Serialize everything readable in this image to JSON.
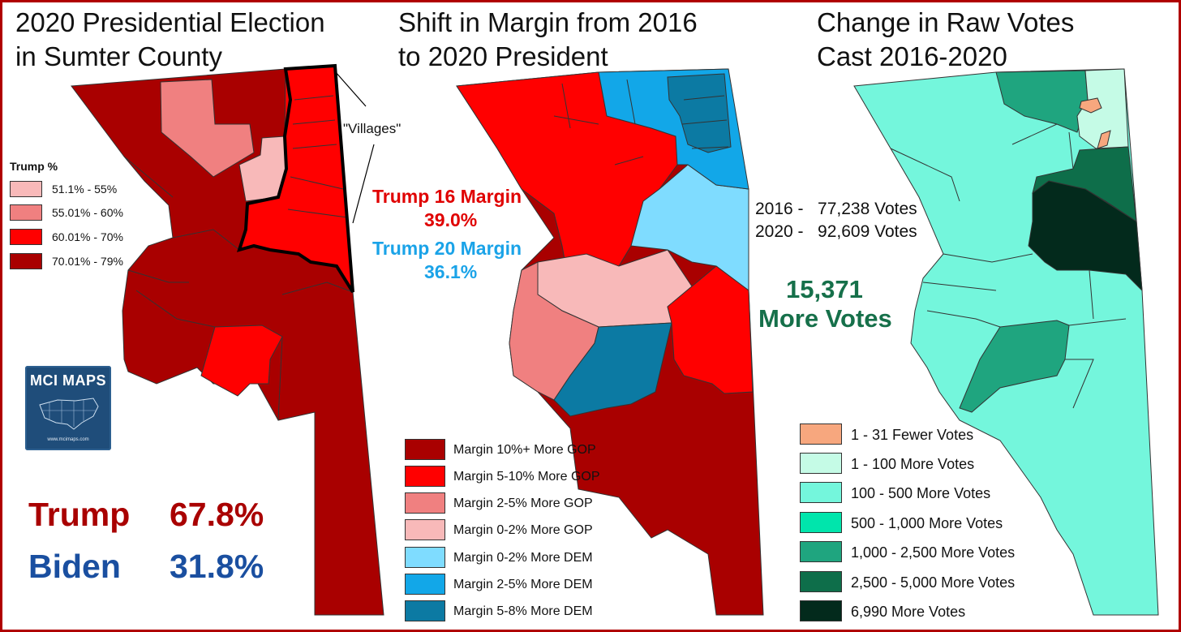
{
  "titles": {
    "map1": "2020 Presidential Election\nin Sumter County",
    "map2": "Shift in Margin from 2016\nto 2020 President",
    "map3": "Change in Raw Votes\nCast 2016-2020"
  },
  "annotations": {
    "villages": "\"Villages\""
  },
  "map1_legend": {
    "title": "Trump  %",
    "items": [
      {
        "label": "51.1% - 55%",
        "color": "#f8b9b9"
      },
      {
        "label": "55.01% - 60%",
        "color": "#f08080"
      },
      {
        "label": "60.01% - 70%",
        "color": "#ff0000"
      },
      {
        "label": "70.01% - 79%",
        "color": "#a90000"
      }
    ]
  },
  "results": {
    "trump_name": "Trump",
    "trump_pct": "67.8%",
    "biden_name": "Biden",
    "biden_pct": "31.8%",
    "trump_color": "#a90000",
    "biden_color": "#1a4fa0"
  },
  "margins": {
    "t16_label": "Trump 16 Margin",
    "t16_value": "39.0%",
    "t20_label": "Trump 20 Margin",
    "t20_value": "36.1%",
    "t16_color": "#e00000",
    "t20_color": "#1aa3e8"
  },
  "map2_legend": {
    "items": [
      {
        "label": "Margin 10%+ More GOP",
        "color": "#a90000"
      },
      {
        "label": "Margin 5-10% More GOP",
        "color": "#ff0000"
      },
      {
        "label": "Margin 2-5% More GOP",
        "color": "#f08080"
      },
      {
        "label": "Margin 0-2% More GOP",
        "color": "#f8b9b9"
      },
      {
        "label": "Margin 0-2% More DEM",
        "color": "#7fdcff"
      },
      {
        "label": "Margin 2-5% More DEM",
        "color": "#12a7e8"
      },
      {
        "label": "Margin 5-8% More DEM",
        "color": "#0c7aa3"
      }
    ]
  },
  "votes": {
    "line_2016": "2016 -   77,238 Votes",
    "line_2020": "2020 -   92,609 Votes",
    "diff_number": "15,371",
    "diff_label": "More Votes",
    "diff_color": "#16704a"
  },
  "map3_legend": {
    "items": [
      {
        "label": "1 - 31 Fewer Votes",
        "color": "#f7a77e"
      },
      {
        "label": "1 - 100 More Votes",
        "color": "#c5fbe6"
      },
      {
        "label": "100 - 500 More Votes",
        "color": "#74f6dc"
      },
      {
        "label": "500 - 1,000 More Votes",
        "color": "#00e5ac"
      },
      {
        "label": "1,000 - 2,500 More Votes",
        "color": "#1fa57f"
      },
      {
        "label": "2,500 - 5,000 More Votes",
        "color": "#0e6e4a"
      },
      {
        "label": "6,990 More Votes",
        "color": "#032a1c"
      }
    ]
  },
  "logo": {
    "title": "MCI MAPS",
    "url": "www.mcimaps.com",
    "color": "#1f4d7a"
  }
}
